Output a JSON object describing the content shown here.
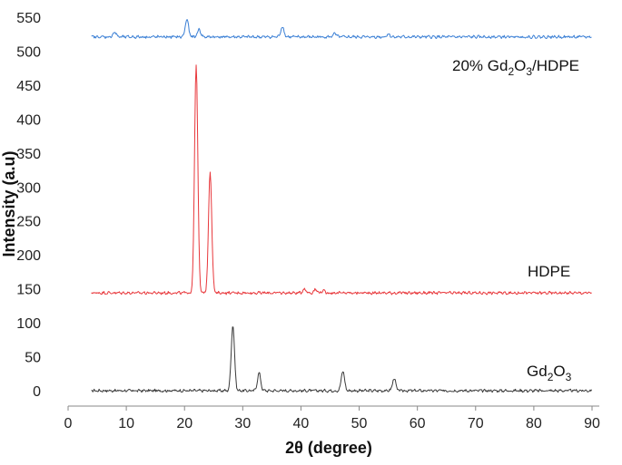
{
  "chart_data": {
    "type": "line",
    "xlabel": "2θ (degree)",
    "ylabel": "Intensity (a.u)",
    "xlim": [
      0,
      90
    ],
    "ylim": [
      0,
      550
    ],
    "x_ticks": [
      0,
      10,
      20,
      30,
      40,
      50,
      60,
      70,
      80,
      90
    ],
    "y_ticks": [
      0,
      50,
      100,
      150,
      200,
      250,
      300,
      350,
      400,
      450,
      500,
      550
    ],
    "grid": false,
    "series": [
      {
        "name": "Gd2O3",
        "label_parts": [
          "Gd",
          "2",
          "O",
          "3"
        ],
        "color": "#3a3a3a",
        "baseline": 0,
        "x_range": [
          4,
          90
        ],
        "peaks": [
          {
            "x": 28.3,
            "y": 97
          },
          {
            "x": 32.8,
            "y": 26
          },
          {
            "x": 47.2,
            "y": 29
          },
          {
            "x": 56.0,
            "y": 18
          }
        ]
      },
      {
        "name": "HDPE",
        "label_parts": [
          "HDPE"
        ],
        "color": "#e8373b",
        "baseline": 144,
        "x_range": [
          4,
          90
        ],
        "peaks": [
          {
            "x": 22.0,
            "y": 482
          },
          {
            "x": 24.4,
            "y": 323
          },
          {
            "x": 40.6,
            "y": 150
          },
          {
            "x": 42.5,
            "y": 149
          },
          {
            "x": 43.8,
            "y": 147
          }
        ]
      },
      {
        "name": "20% Gd2O3/HDPE",
        "label_parts": [
          "20% Gd",
          "2",
          "O",
          "3",
          "/HDPE"
        ],
        "color": "#3a7fd5",
        "baseline": 521,
        "x_range": [
          4,
          90
        ],
        "peaks": [
          {
            "x": 8.0,
            "y": 528
          },
          {
            "x": 20.4,
            "y": 547
          },
          {
            "x": 22.5,
            "y": 532
          },
          {
            "x": 36.8,
            "y": 536
          },
          {
            "x": 45.8,
            "y": 526
          },
          {
            "x": 55.0,
            "y": 525
          }
        ]
      }
    ]
  }
}
